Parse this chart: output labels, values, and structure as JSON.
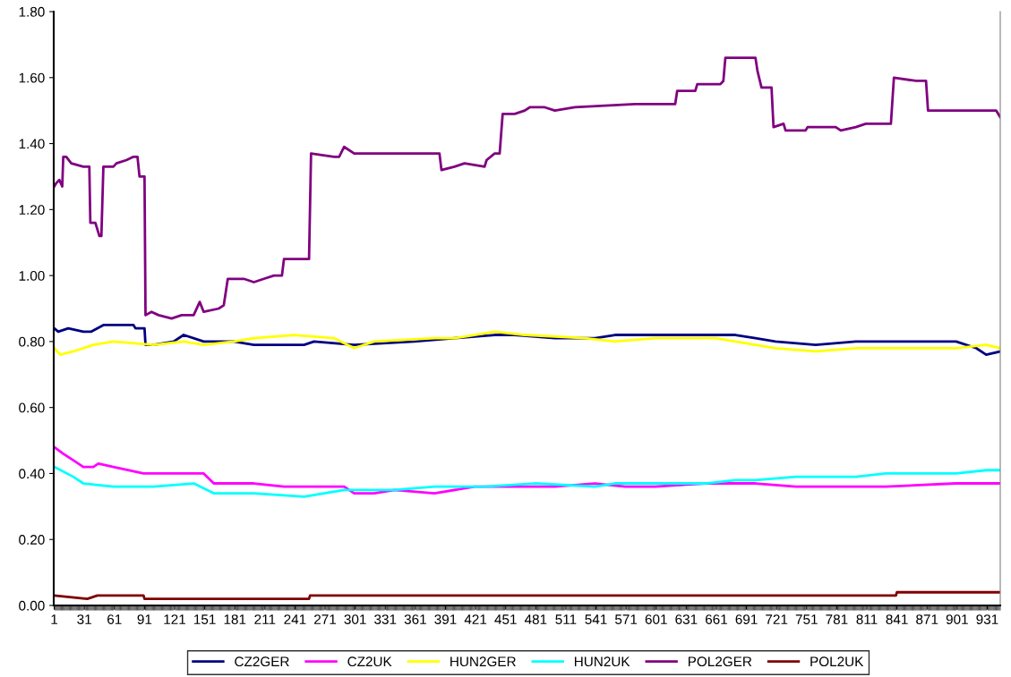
{
  "chart_data": {
    "type": "line",
    "xlim": [
      0.5,
      944
    ],
    "xticks": [
      1,
      31,
      61,
      91,
      121,
      151,
      181,
      211,
      241,
      271,
      301,
      331,
      361,
      391,
      421,
      451,
      481,
      511,
      541,
      571,
      601,
      631,
      661,
      691,
      721,
      751,
      781,
      811,
      841,
      871,
      901,
      931
    ],
    "ylim": [
      0,
      1.8
    ],
    "yticks": [
      {
        "value": 0,
        "label": "0.00"
      },
      {
        "value": 0.2,
        "label": "0.20"
      },
      {
        "value": 0.4,
        "label": "0.40"
      },
      {
        "value": 0.6,
        "label": "0.60"
      },
      {
        "value": 0.8,
        "label": "0.80"
      },
      {
        "value": 1.0,
        "label": "1.00"
      },
      {
        "value": 1.2,
        "label": "1.20"
      },
      {
        "value": 1.4,
        "label": "1.40"
      },
      {
        "value": 1.6,
        "label": "1.60"
      },
      {
        "value": 1.8,
        "label": "1.80"
      }
    ],
    "grid": false,
    "legend": "bottom",
    "marker": "none",
    "line_style": "solid",
    "series": [
      {
        "name": "CZ2GER",
        "color": "#000080",
        "x": [
          1,
          5,
          15,
          30,
          38,
          50,
          80,
          82,
          91,
          92,
          100,
          120,
          130,
          150,
          180,
          200,
          250,
          260,
          300,
          360,
          400,
          440,
          460,
          500,
          540,
          560,
          600,
          680,
          700,
          720,
          760,
          800,
          840,
          900,
          920,
          930,
          944
        ],
        "values": [
          0.84,
          0.83,
          0.84,
          0.83,
          0.83,
          0.85,
          0.85,
          0.84,
          0.84,
          0.79,
          0.79,
          0.8,
          0.82,
          0.8,
          0.8,
          0.79,
          0.79,
          0.8,
          0.79,
          0.8,
          0.81,
          0.82,
          0.82,
          0.81,
          0.81,
          0.82,
          0.82,
          0.82,
          0.81,
          0.8,
          0.79,
          0.8,
          0.8,
          0.8,
          0.78,
          0.76,
          0.77
        ]
      },
      {
        "name": "CZ2UK",
        "color": "#ff00ff",
        "x": [
          1,
          10,
          20,
          30,
          40,
          45,
          60,
          90,
          150,
          160,
          200,
          230,
          260,
          290,
          300,
          320,
          340,
          380,
          420,
          500,
          540,
          570,
          600,
          650,
          700,
          740,
          800,
          830,
          900,
          944
        ],
        "values": [
          0.48,
          0.46,
          0.44,
          0.42,
          0.42,
          0.43,
          0.42,
          0.4,
          0.4,
          0.37,
          0.37,
          0.36,
          0.36,
          0.36,
          0.34,
          0.34,
          0.35,
          0.34,
          0.36,
          0.36,
          0.37,
          0.36,
          0.36,
          0.37,
          0.37,
          0.36,
          0.36,
          0.36,
          0.37,
          0.37
        ]
      },
      {
        "name": "HUN2GER",
        "color": "#ffff00",
        "x": [
          1,
          7,
          20,
          40,
          60,
          100,
          130,
          150,
          180,
          200,
          240,
          280,
          300,
          320,
          380,
          400,
          420,
          440,
          470,
          530,
          560,
          600,
          660,
          700,
          720,
          760,
          800,
          900,
          930,
          944
        ],
        "values": [
          0.78,
          0.76,
          0.77,
          0.79,
          0.8,
          0.79,
          0.8,
          0.79,
          0.8,
          0.81,
          0.82,
          0.81,
          0.78,
          0.8,
          0.81,
          0.81,
          0.82,
          0.83,
          0.82,
          0.81,
          0.8,
          0.81,
          0.81,
          0.79,
          0.78,
          0.77,
          0.78,
          0.78,
          0.79,
          0.78
        ]
      },
      {
        "name": "HUN2UK",
        "color": "#00ffff",
        "x": [
          1,
          20,
          30,
          60,
          100,
          140,
          160,
          200,
          250,
          290,
          340,
          380,
          430,
          480,
          540,
          560,
          650,
          680,
          700,
          740,
          800,
          830,
          900,
          930,
          944
        ],
        "values": [
          0.42,
          0.39,
          0.37,
          0.36,
          0.36,
          0.37,
          0.34,
          0.34,
          0.33,
          0.35,
          0.35,
          0.36,
          0.36,
          0.37,
          0.36,
          0.37,
          0.37,
          0.38,
          0.38,
          0.39,
          0.39,
          0.4,
          0.4,
          0.41,
          0.41
        ]
      },
      {
        "name": "POL2GER",
        "color": "#800080",
        "x": [
          1,
          3,
          6,
          9,
          10,
          13,
          18,
          30,
          36,
          37,
          42,
          46,
          48,
          50,
          60,
          63,
          73,
          80,
          84,
          86,
          91,
          92,
          98,
          105,
          118,
          128,
          140,
          146,
          150,
          165,
          170,
          174,
          190,
          200,
          210,
          220,
          228,
          230,
          255,
          257,
          280,
          285,
          290,
          300,
          320,
          385,
          387,
          400,
          410,
          430,
          432,
          440,
          445,
          448,
          460,
          470,
          475,
          490,
          500,
          520,
          580,
          620,
          622,
          640,
          642,
          665,
          668,
          670,
          700,
          702,
          706,
          716,
          718,
          728,
          730,
          750,
          752,
          780,
          785,
          800,
          810,
          835,
          838,
          860,
          870,
          872,
          880,
          940,
          944
        ],
        "values": [
          1.27,
          1.28,
          1.29,
          1.27,
          1.36,
          1.36,
          1.34,
          1.33,
          1.33,
          1.16,
          1.16,
          1.12,
          1.12,
          1.33,
          1.33,
          1.34,
          1.35,
          1.36,
          1.36,
          1.3,
          1.3,
          0.88,
          0.89,
          0.88,
          0.87,
          0.88,
          0.88,
          0.92,
          0.89,
          0.9,
          0.91,
          0.99,
          0.99,
          0.98,
          0.99,
          1.0,
          1.0,
          1.05,
          1.05,
          1.37,
          1.36,
          1.36,
          1.39,
          1.37,
          1.37,
          1.37,
          1.32,
          1.33,
          1.34,
          1.33,
          1.35,
          1.37,
          1.37,
          1.49,
          1.49,
          1.5,
          1.51,
          1.51,
          1.5,
          1.51,
          1.52,
          1.52,
          1.56,
          1.56,
          1.58,
          1.58,
          1.59,
          1.66,
          1.66,
          1.62,
          1.57,
          1.57,
          1.45,
          1.46,
          1.44,
          1.44,
          1.45,
          1.45,
          1.44,
          1.45,
          1.46,
          1.46,
          1.6,
          1.59,
          1.59,
          1.5,
          1.5,
          1.5,
          1.48
        ]
      },
      {
        "name": "POL2UK",
        "color": "#800000",
        "x": [
          1,
          34,
          44,
          90,
          91,
          255,
          256,
          330,
          840,
          841,
          944
        ],
        "values": [
          0.03,
          0.02,
          0.03,
          0.03,
          0.02,
          0.02,
          0.03,
          0.03,
          0.03,
          0.04,
          0.04
        ]
      }
    ]
  }
}
